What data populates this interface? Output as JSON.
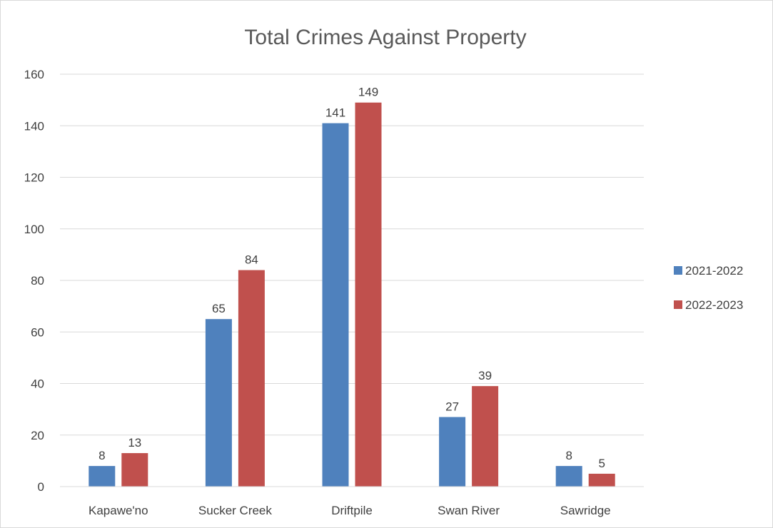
{
  "chart_data": {
    "type": "bar",
    "title": "Total Crimes Against Property",
    "xlabel": "",
    "ylabel": "",
    "categories": [
      "Kapawe'no",
      "Sucker Creek",
      "Driftpile",
      "Swan River",
      "Sawridge"
    ],
    "series": [
      {
        "name": "2021-2022",
        "color": "#4f81bd",
        "values": [
          8,
          65,
          141,
          27,
          8
        ]
      },
      {
        "name": "2022-2023",
        "color": "#c0504d",
        "values": [
          13,
          84,
          149,
          39,
          5
        ]
      }
    ],
    "ylim": [
      0,
      160
    ],
    "yticks": [
      0,
      20,
      40,
      60,
      80,
      100,
      120,
      140,
      160
    ],
    "grid": true,
    "gridColor": "#d9d9d9",
    "legend_position": "right",
    "data_labels": true
  }
}
